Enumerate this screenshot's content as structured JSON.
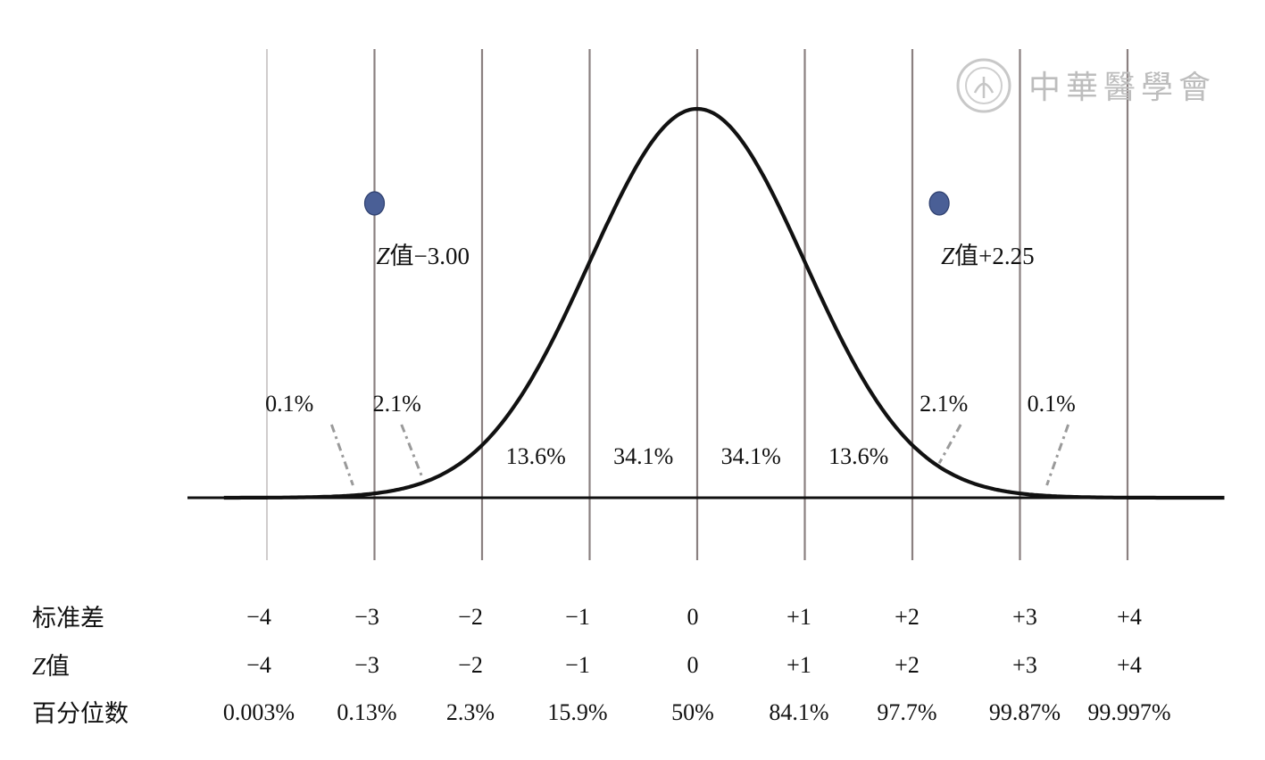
{
  "watermark": {
    "text": "中華醫學會",
    "seal": "seal-icon"
  },
  "chart_data": {
    "type": "line",
    "title": "",
    "xlabel": "",
    "ylabel": "",
    "xlim": [
      -4.4,
      4.9
    ],
    "x": [
      -4,
      -3,
      -2,
      -1,
      0,
      1,
      2,
      3,
      4
    ],
    "series": [
      {
        "curve": "normal-density",
        "mean": 0,
        "sd": 1
      }
    ],
    "region_labels": [
      {
        "text": "0.1%",
        "x": -3.5,
        "leader_x": -3.2
      },
      {
        "text": "2.1%",
        "x": -2.5,
        "leader_x": -2.55
      },
      {
        "text": "13.6%",
        "x": -1.5
      },
      {
        "text": "34.1%",
        "x": -0.5
      },
      {
        "text": "34.1%",
        "x": 0.5
      },
      {
        "text": "13.6%",
        "x": 1.5
      },
      {
        "text": "2.1%",
        "x": 2.5,
        "leader_x": 2.25
      },
      {
        "text": "0.1%",
        "x": 3.5,
        "leader_x": 3.25
      }
    ],
    "markers": [
      {
        "x": -3.0,
        "label_prefix": "Z",
        "label_rest": "值−3.00"
      },
      {
        "x": 2.25,
        "label_prefix": "Z",
        "label_rest": "值+2.25"
      }
    ],
    "rows": [
      {
        "label": "标准差",
        "italic_prefix": "",
        "values": [
          "−4",
          "−3",
          "−2",
          "−1",
          "0",
          "+1",
          "+2",
          "+3",
          "+4"
        ]
      },
      {
        "label": "值",
        "italic_prefix": "Z",
        "values": [
          "−4",
          "−3",
          "−2",
          "−1",
          "0",
          "+1",
          "+2",
          "+3",
          "+4"
        ]
      },
      {
        "label": "百分位数",
        "italic_prefix": "",
        "values": [
          "0.003%",
          "0.13%",
          "2.3%",
          "15.9%",
          "50%",
          "84.1%",
          "97.7%",
          "99.87%",
          "99.997%"
        ]
      }
    ],
    "colors": {
      "curve": "#111111",
      "gridlines": "#8a8080",
      "outer_gridlines": "#d0cccc",
      "marker": "#4a5f96",
      "leader": "#9a9a9a"
    }
  }
}
